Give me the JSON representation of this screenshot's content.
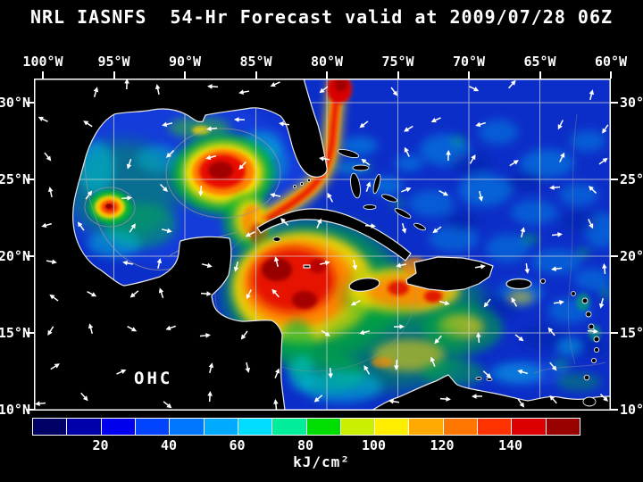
{
  "title": "NRL IASNFS  54-Hr Forecast valid at 2009/07/28 06Z",
  "axes": {
    "lon_ticks": [
      "100°W",
      "95°W",
      "90°W",
      "85°W",
      "80°W",
      "75°W",
      "70°W",
      "65°W",
      "60°W"
    ],
    "lat_ticks_left": [
      "30°N",
      "25°N",
      "20°N",
      "15°N",
      "10°N"
    ],
    "lat_ticks_right": [
      "30°N",
      "25°N",
      "20°N",
      "15°N",
      "10°N"
    ]
  },
  "map": {
    "overlay_label": "OHC"
  },
  "colorbar": {
    "unit": "kJ/cm²",
    "tick_labels": [
      "20",
      "40",
      "60",
      "80",
      "100",
      "120",
      "140"
    ],
    "colors": [
      "#000066",
      "#0000aa",
      "#0000ee",
      "#0044ff",
      "#0077ff",
      "#00aaff",
      "#00ddff",
      "#00ee99",
      "#00dd00",
      "#ccee00",
      "#ffee00",
      "#ffaa00",
      "#ff7700",
      "#ff3300",
      "#dd0000",
      "#990000"
    ]
  },
  "chart_data": {
    "type": "heatmap",
    "title": "NRL IASNFS 54-Hr Forecast valid at 2009/07/28 06Z",
    "variable": "OHC",
    "unit": "kJ/cm²",
    "colorbar_tick_values": [
      20,
      40,
      60,
      80,
      100,
      120,
      140
    ],
    "colorbar_value_step_per_segment": 10,
    "lon_ticks_deg_w": [
      100,
      95,
      90,
      85,
      80,
      75,
      70,
      65,
      60
    ],
    "lat_ticks_deg_n": [
      30,
      25,
      20,
      15,
      10
    ],
    "region": "Gulf of Mexico and Caribbean Sea",
    "legend_position": "bottom",
    "grid": true
  }
}
